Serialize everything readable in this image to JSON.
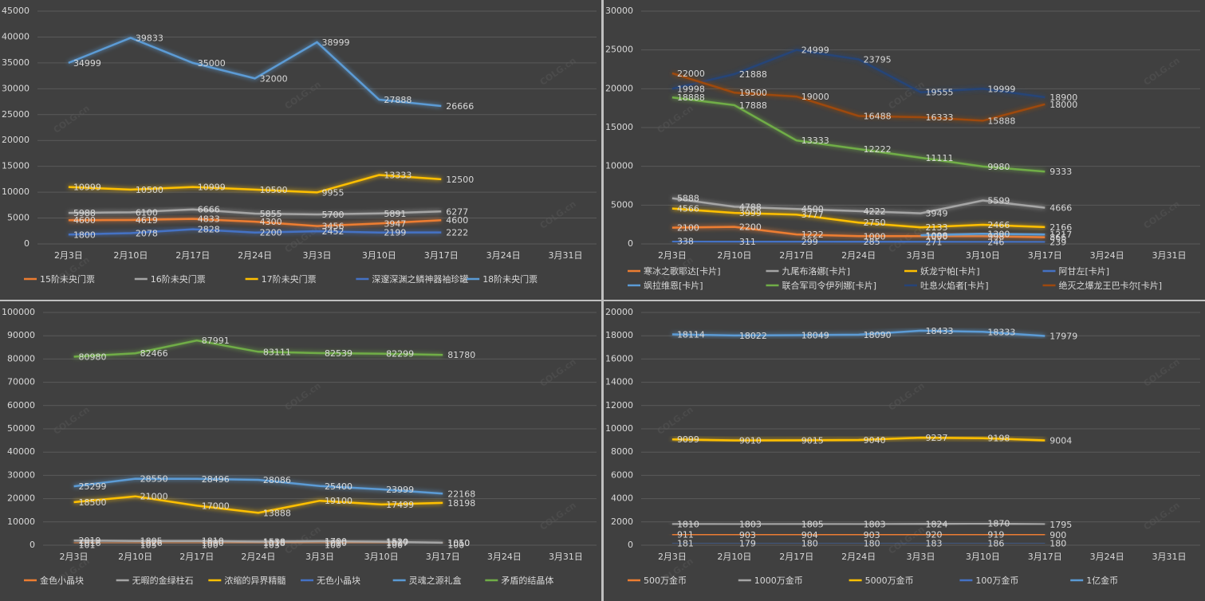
{
  "watermark": "COLG.cn",
  "chart_data": [
    {
      "type": "line",
      "grid": true,
      "legend": "bottom",
      "categories": [
        "2月3日",
        "2月10日",
        "2月17日",
        "2月24日",
        "3月3日",
        "3月10日",
        "3月17日",
        "3月24日",
        "3月31日"
      ],
      "ylim": [
        0,
        45000
      ],
      "yticks": [
        0,
        5000,
        10000,
        15000,
        20000,
        25000,
        30000,
        35000,
        40000,
        45000
      ],
      "series": [
        {
          "name": "15阶未央门票",
          "color": "#ed7d31",
          "values": [
            4600,
            4619,
            4833,
            4300,
            3456,
            3947,
            4600,
            null,
            null
          ]
        },
        {
          "name": "16阶未央门票",
          "color": "#a5a5a5",
          "values": [
            5988,
            6100,
            6666,
            5855,
            5700,
            5891,
            6277,
            null,
            null
          ]
        },
        {
          "name": "17阶未央门票",
          "color": "#ffc000",
          "values": [
            10999,
            10500,
            10999,
            10500,
            9955,
            13333,
            12500,
            null,
            null
          ]
        },
        {
          "name": "深邃深渊之鳞神器袖珍罐",
          "color": "#4472c4",
          "values": [
            1800,
            2078,
            2828,
            2200,
            2452,
            2199,
            2222,
            null,
            null
          ]
        },
        {
          "name": "18阶未央门票",
          "color": "#5b9bd5",
          "values": [
            34999,
            39833,
            35000,
            32000,
            38999,
            27888,
            26666,
            null,
            null
          ]
        }
      ]
    },
    {
      "type": "line",
      "grid": true,
      "legend": "bottom",
      "categories": [
        "2月3日",
        "2月10日",
        "2月17日",
        "2月24日",
        "3月3日",
        "3月10日",
        "3月17日",
        "3月24日",
        "3月31日"
      ],
      "ylim": [
        0,
        30000
      ],
      "yticks": [
        0,
        5000,
        10000,
        15000,
        20000,
        25000,
        30000
      ],
      "series": [
        {
          "name": "寒冰之歌耶达[卡片]",
          "color": "#ed7d31",
          "values": [
            2100,
            2200,
            1222,
            1000,
            1000,
            998,
            866,
            null,
            null
          ]
        },
        {
          "name": "九尾布洛娜[卡片]",
          "color": "#a5a5a5",
          "values": [
            5888,
            4788,
            4500,
            4222,
            3949,
            5599,
            4666,
            null,
            null
          ]
        },
        {
          "name": "妖龙宁帕[卡片]",
          "color": "#ffc000",
          "values": [
            4566,
            3999,
            3777,
            2750,
            2133,
            2466,
            2166,
            null,
            null
          ]
        },
        {
          "name": "阿甘左[卡片]",
          "color": "#4472c4",
          "values": [
            338,
            311,
            299,
            285,
            271,
            246,
            239,
            null,
            null
          ]
        },
        {
          "name": "飒拉维恩[卡片]",
          "color": "#5b9bd5",
          "values": [
            null,
            null,
            null,
            null,
            1098,
            1300,
            1217,
            null,
            null
          ]
        },
        {
          "name": "联合军司令伊列娜[卡片]",
          "color": "#70ad47",
          "values": [
            18888,
            17888,
            13333,
            12222,
            11111,
            9980,
            9333,
            null,
            null
          ]
        },
        {
          "name": "吐息火焰者[卡片]",
          "color": "#264478",
          "values": [
            19998,
            21888,
            24999,
            23795,
            19555,
            19999,
            18900,
            null,
            null
          ]
        },
        {
          "name": "绝灭之爆龙王巴卡尔[卡片]",
          "color": "#9e480e",
          "values": [
            22000,
            19500,
            19000,
            16488,
            16333,
            15888,
            18000,
            null,
            null
          ]
        }
      ]
    },
    {
      "type": "line",
      "grid": true,
      "legend": "bottom",
      "categories": [
        "2月3日",
        "2月10日",
        "2月17日",
        "2月24日",
        "3月3日",
        "3月10日",
        "3月17日",
        "3月24日",
        "3月31日"
      ],
      "ylim": [
        0,
        100000
      ],
      "yticks": [
        0,
        10000,
        20000,
        30000,
        40000,
        50000,
        60000,
        70000,
        80000,
        90000,
        100000
      ],
      "series": [
        {
          "name": "金色小晶块",
          "color": "#ed7d31",
          "values": [
            1016,
            1026,
            1000,
            1018,
            1010,
            1017,
            1010,
            null,
            null
          ]
        },
        {
          "name": "无暇的金绿柱石",
          "color": "#a5a5a5",
          "values": [
            2019,
            1805,
            1810,
            1538,
            1700,
            1520,
            1050,
            null,
            null
          ]
        },
        {
          "name": "浓缩的异界精髓",
          "color": "#ffc000",
          "values": [
            18500,
            21000,
            17000,
            13888,
            19100,
            17499,
            18198,
            null,
            null
          ]
        },
        {
          "name": "无色小晶块",
          "color": "#4472c4",
          "values": [
            101,
            105,
            100,
            103,
            100,
            100,
            100,
            null,
            null
          ]
        },
        {
          "name": "灵魂之源礼盒",
          "color": "#5b9bd5",
          "values": [
            25299,
            28550,
            28496,
            28086,
            25400,
            23999,
            22168,
            null,
            null
          ]
        },
        {
          "name": "矛盾的结晶体",
          "color": "#70ad47",
          "values": [
            80980,
            82466,
            87991,
            83111,
            82539,
            82299,
            81780,
            null,
            null
          ]
        }
      ]
    },
    {
      "type": "line",
      "grid": true,
      "legend": "bottom",
      "categories": [
        "2月3日",
        "2月10日",
        "2月17日",
        "2月24日",
        "3月3日",
        "3月10日",
        "3月17日",
        "3月24日",
        "3月31日"
      ],
      "ylim": [
        0,
        20000
      ],
      "yticks": [
        0,
        2000,
        4000,
        6000,
        8000,
        10000,
        12000,
        14000,
        16000,
        18000,
        20000
      ],
      "series": [
        {
          "name": "500万金币",
          "color": "#ed7d31",
          "values": [
            911,
            903,
            904,
            903,
            920,
            919,
            900,
            null,
            null
          ]
        },
        {
          "name": "1000万金币",
          "color": "#a5a5a5",
          "values": [
            1810,
            1803,
            1805,
            1803,
            1824,
            1870,
            1795,
            null,
            null
          ]
        },
        {
          "name": "5000万金币",
          "color": "#ffc000",
          "values": [
            9099,
            9010,
            9015,
            9040,
            9237,
            9198,
            9004,
            null,
            null
          ]
        },
        {
          "name": "100万金币",
          "color": "#4472c4",
          "values": [
            181,
            179,
            180,
            180,
            183,
            186,
            180,
            null,
            null
          ]
        },
        {
          "name": "1亿金币",
          "color": "#5b9bd5",
          "values": [
            18114,
            18022,
            18049,
            18090,
            18433,
            18333,
            17979,
            null,
            null
          ]
        }
      ]
    }
  ]
}
